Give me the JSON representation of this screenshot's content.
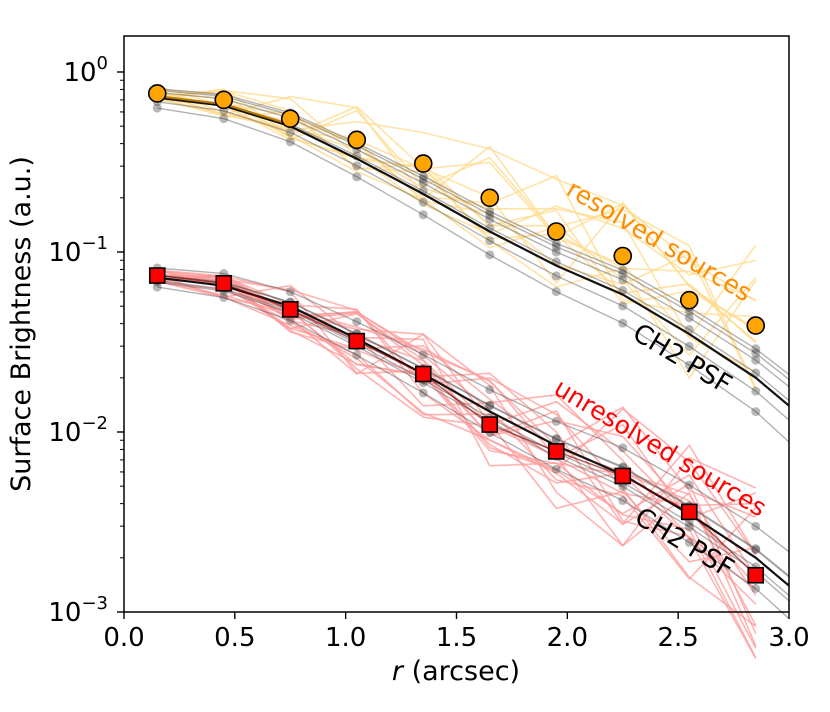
{
  "chart_data": {
    "type": "line",
    "xlabel_italic": "r",
    "xlabel_rest": " (arcsec)",
    "ylabel": "Surface Brightness (a.u.)",
    "xlim": [
      0.0,
      3.0
    ],
    "ylim_log10": [
      -3,
      0.2
    ],
    "y_scale": "log",
    "x_ticks": [
      "0.0",
      "0.5",
      "1.0",
      "1.5",
      "2.0",
      "2.5",
      "3.0"
    ],
    "x_tick_values": [
      0.0,
      0.5,
      1.0,
      1.5,
      2.0,
      2.5,
      3.0
    ],
    "y_ticks": [
      {
        "base": "10",
        "exp": "0",
        "value": 1.0
      },
      {
        "base": "10",
        "exp": "−1",
        "value": 0.1
      },
      {
        "base": "10",
        "exp": "−2",
        "value": 0.01
      },
      {
        "base": "10",
        "exp": "−3",
        "value": 0.001
      }
    ],
    "annotations": {
      "resolved": "resolved sources",
      "unresolved": "unresolved sources",
      "psf_upper": "CH2 PSF",
      "psf_lower": "CH2 PSF"
    },
    "colors": {
      "resolved": "#ffa500",
      "resolved_faint": "#ffd98a",
      "unresolved": "#ff0000",
      "unresolved_faint": "#ff9a9a",
      "psf": "#000000",
      "resolved_label": "#ff8c00",
      "unresolved_label": "#ff0000"
    },
    "series": [
      {
        "name": "resolved sources (mean)",
        "marker": "circle",
        "x": [
          0.15,
          0.45,
          0.75,
          1.05,
          1.35,
          1.65,
          1.95,
          2.25,
          2.55,
          2.85
        ],
        "values": [
          0.76,
          0.7,
          0.55,
          0.42,
          0.31,
          0.2,
          0.13,
          0.095,
          0.054,
          0.039
        ]
      },
      {
        "name": "unresolved sources (mean)",
        "marker": "square",
        "x": [
          0.15,
          0.45,
          0.75,
          1.05,
          1.35,
          1.65,
          1.95,
          2.25,
          2.55,
          2.85
        ],
        "values": [
          0.074,
          0.067,
          0.048,
          0.032,
          0.021,
          0.011,
          0.0078,
          0.0057,
          0.0036,
          0.0016
        ]
      },
      {
        "name": "CH2 PSF (upper)",
        "x": [
          0.15,
          0.45,
          0.75,
          1.05,
          1.35,
          1.65,
          1.95,
          2.25,
          2.55,
          2.85,
          3.0
        ],
        "values": [
          0.72,
          0.65,
          0.5,
          0.33,
          0.21,
          0.13,
          0.084,
          0.058,
          0.035,
          0.02,
          0.014
        ]
      },
      {
        "name": "CH2 PSF (lower)",
        "x": [
          0.15,
          0.45,
          0.75,
          1.05,
          1.35,
          1.65,
          1.95,
          2.25,
          2.55,
          2.85,
          3.0
        ],
        "values": [
          0.072,
          0.065,
          0.05,
          0.033,
          0.021,
          0.013,
          0.0084,
          0.0058,
          0.0035,
          0.002,
          0.0014
        ]
      }
    ]
  }
}
